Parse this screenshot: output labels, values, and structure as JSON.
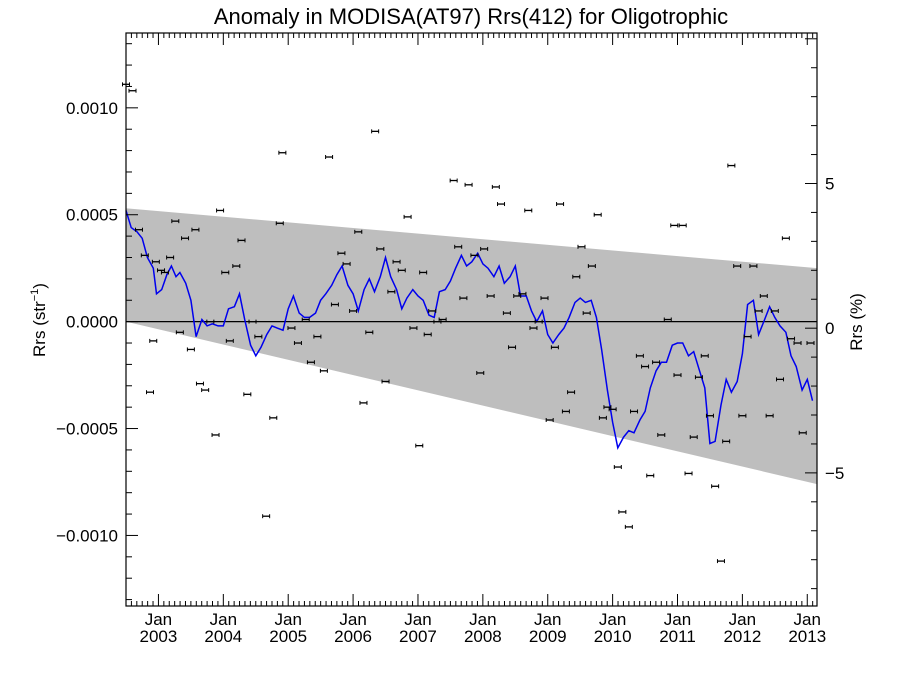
{
  "chart_data": {
    "type": "scatter",
    "title": "Anomaly in MODISA(AT97) Rrs(412) for Oligotrophic",
    "ylabel_left": "Rrs (str",
    "ylabel_left_exp": "−1",
    "ylabel_left_close": ")",
    "ylabel_right": "Rrs (%)",
    "xlim": [
      2002.5,
      2013.15
    ],
    "ylim_left": [
      -0.00133,
      0.00135
    ],
    "ylim_right": [
      -9.6,
      10.2
    ],
    "x_ticks": [
      {
        "x": 2003.0,
        "line1": "Jan",
        "line2": "2003"
      },
      {
        "x": 2004.0,
        "line1": "Jan",
        "line2": "2004"
      },
      {
        "x": 2005.0,
        "line1": "Jan",
        "line2": "2005"
      },
      {
        "x": 2006.0,
        "line1": "Jan",
        "line2": "2006"
      },
      {
        "x": 2007.0,
        "line1": "Jan",
        "line2": "2007"
      },
      {
        "x": 2008.0,
        "line1": "Jan",
        "line2": "2008"
      },
      {
        "x": 2009.0,
        "line1": "Jan",
        "line2": "2009"
      },
      {
        "x": 2010.0,
        "line1": "Jan",
        "line2": "2010"
      },
      {
        "x": 2011.0,
        "line1": "Jan",
        "line2": "2011"
      },
      {
        "x": 2012.0,
        "line1": "Jan",
        "line2": "2012"
      },
      {
        "x": 2013.0,
        "line1": "Jan",
        "line2": "2013"
      }
    ],
    "y_ticks_left": [
      {
        "value": 0.001,
        "label": "0.0010"
      },
      {
        "value": 0.0005,
        "label": "0.0005"
      },
      {
        "value": 0.0,
        "label": "0.0000"
      },
      {
        "value": -0.0005,
        "label": "−0.0005"
      },
      {
        "value": -0.001,
        "label": "−0.0010"
      }
    ],
    "y_ticks_right": [
      {
        "value": 5,
        "label": "5"
      },
      {
        "value": 0,
        "label": "0"
      },
      {
        "value": -5,
        "label": "−5"
      }
    ],
    "band": {
      "x": [
        2002.5,
        2013.15
      ],
      "upper": [
        0.00053,
        0.00025
      ],
      "lower": [
        0.0,
        -0.00076
      ]
    },
    "zero_line": 0.0,
    "series": [
      {
        "name": "monthly anomaly",
        "style": "points-with-errorbars",
        "color": "#000000",
        "points": [
          [
            2002.5,
            0.00111
          ],
          [
            2002.6,
            0.00108
          ],
          [
            2002.7,
            0.00043
          ],
          [
            2002.79,
            0.00031
          ],
          [
            2002.87,
            -0.00033
          ],
          [
            2002.92,
            -9e-05
          ],
          [
            2002.96,
            0.00028
          ],
          [
            2003.04,
            0.00024
          ],
          [
            2003.1,
            0.00023
          ],
          [
            2003.18,
            0.0003
          ],
          [
            2003.26,
            0.00047
          ],
          [
            2003.33,
            -5e-05
          ],
          [
            2003.41,
            0.00039
          ],
          [
            2003.5,
            -0.00013
          ],
          [
            2003.57,
            0.00043
          ],
          [
            2003.64,
            -0.00029
          ],
          [
            2003.72,
            -0.00032
          ],
          [
            2003.8,
            0.0
          ],
          [
            2003.88,
            -0.00053
          ],
          [
            2003.95,
            0.00052
          ],
          [
            2004.03,
            0.00023
          ],
          [
            2004.1,
            -9e-05
          ],
          [
            2004.2,
            0.00026
          ],
          [
            2004.28,
            0.00038
          ],
          [
            2004.37,
            -0.00034
          ],
          [
            2004.45,
            0.0
          ],
          [
            2004.54,
            -7e-05
          ],
          [
            2004.66,
            -0.00091
          ],
          [
            2004.77,
            -0.00045
          ],
          [
            2004.87,
            0.00046
          ],
          [
            2004.91,
            0.00079
          ],
          [
            2005.05,
            -3e-05
          ],
          [
            2005.15,
            -0.0001
          ],
          [
            2005.27,
            1e-05
          ],
          [
            2005.35,
            -0.00019
          ],
          [
            2005.45,
            -7e-05
          ],
          [
            2005.55,
            -0.00023
          ],
          [
            2005.63,
            0.00077
          ],
          [
            2005.72,
            8e-05
          ],
          [
            2005.82,
            0.00032
          ],
          [
            2005.9,
            0.00027
          ],
          [
            2006.0,
            5e-05
          ],
          [
            2006.08,
            0.00042
          ],
          [
            2006.16,
            -0.00038
          ],
          [
            2006.25,
            -5e-05
          ],
          [
            2006.34,
            0.00089
          ],
          [
            2006.42,
            0.00034
          ],
          [
            2006.5,
            -0.00028
          ],
          [
            2006.59,
            0.00014
          ],
          [
            2006.67,
            0.00028
          ],
          [
            2006.75,
            0.00024
          ],
          [
            2006.84,
            0.00049
          ],
          [
            2006.93,
            -3e-05
          ],
          [
            2007.02,
            -0.00058
          ],
          [
            2007.08,
            0.00023
          ],
          [
            2007.15,
            -6e-05
          ],
          [
            2007.22,
            5e-05
          ],
          [
            2007.3,
            0.0
          ],
          [
            2007.38,
            1e-05
          ],
          [
            2007.55,
            0.00066
          ],
          [
            2007.62,
            0.00035
          ],
          [
            2007.7,
            0.00011
          ],
          [
            2007.78,
            0.00064
          ],
          [
            2007.87,
            0.00031
          ],
          [
            2007.96,
            -0.00024
          ],
          [
            2008.02,
            0.00034
          ],
          [
            2008.12,
            0.00012
          ],
          [
            2008.2,
            0.00063
          ],
          [
            2008.28,
            0.00055
          ],
          [
            2008.37,
            4e-05
          ],
          [
            2008.45,
            -0.00012
          ],
          [
            2008.53,
            0.00012
          ],
          [
            2008.61,
            0.00013
          ],
          [
            2008.7,
            0.00052
          ],
          [
            2008.78,
            -3e-05
          ],
          [
            2008.86,
            0.0
          ],
          [
            2008.95,
            0.00011
          ],
          [
            2009.03,
            -0.00046
          ],
          [
            2009.11,
            -0.00012
          ],
          [
            2009.19,
            0.00055
          ],
          [
            2009.28,
            -0.00042
          ],
          [
            2009.36,
            -0.00033
          ],
          [
            2009.44,
            0.00021
          ],
          [
            2009.52,
            0.00035
          ],
          [
            2009.6,
            4e-05
          ],
          [
            2009.68,
            0.00026
          ],
          [
            2009.77,
            0.0005
          ],
          [
            2009.85,
            -0.00045
          ],
          [
            2009.92,
            -0.0004
          ],
          [
            2010.0,
            -0.00041
          ],
          [
            2010.08,
            -0.00068
          ],
          [
            2010.15,
            -0.00089
          ],
          [
            2010.25,
            -0.00096
          ],
          [
            2010.33,
            -0.00042
          ],
          [
            2010.42,
            -0.00016
          ],
          [
            2010.5,
            -0.00021
          ],
          [
            2010.58,
            -0.00072
          ],
          [
            2010.67,
            -0.00019
          ],
          [
            2010.75,
            -0.00053
          ],
          [
            2010.85,
            1e-05
          ],
          [
            2010.95,
            0.00045
          ],
          [
            2011.0,
            -0.00025
          ],
          [
            2011.08,
            0.00045
          ],
          [
            2011.17,
            -0.00071
          ],
          [
            2011.25,
            -0.00054
          ],
          [
            2011.33,
            -0.00026
          ],
          [
            2011.42,
            -0.00016
          ],
          [
            2011.5,
            -0.00044
          ],
          [
            2011.58,
            -0.00077
          ],
          [
            2011.67,
            -0.00112
          ],
          [
            2011.75,
            -0.00056
          ],
          [
            2011.83,
            0.00073
          ],
          [
            2011.92,
            0.00026
          ],
          [
            2012.0,
            -0.00044
          ],
          [
            2012.08,
            -7e-05
          ],
          [
            2012.17,
            0.00026
          ],
          [
            2012.25,
            5e-05
          ],
          [
            2012.33,
            0.00012
          ],
          [
            2012.42,
            -0.00044
          ],
          [
            2012.5,
            5e-05
          ],
          [
            2012.58,
            -0.00027
          ],
          [
            2012.67,
            0.00039
          ],
          [
            2012.75,
            -8e-05
          ],
          [
            2012.85,
            -0.0001
          ],
          [
            2012.93,
            -0.00052
          ],
          [
            2013.05,
            -0.0001
          ]
        ]
      },
      {
        "name": "smoothed anomaly",
        "style": "line",
        "color": "#0000ee",
        "points": [
          [
            2002.5,
            0.00052
          ],
          [
            2002.58,
            0.00044
          ],
          [
            2002.67,
            0.00042
          ],
          [
            2002.75,
            0.00039
          ],
          [
            2002.83,
            0.0003
          ],
          [
            2002.92,
            0.00025
          ],
          [
            2002.97,
            0.00013
          ],
          [
            2003.05,
            0.00015
          ],
          [
            2003.13,
            0.00022
          ],
          [
            2003.2,
            0.00026
          ],
          [
            2003.27,
            0.00021
          ],
          [
            2003.33,
            0.00023
          ],
          [
            2003.42,
            0.00018
          ],
          [
            2003.5,
            0.0001
          ],
          [
            2003.58,
            -7e-05
          ],
          [
            2003.67,
            1e-05
          ],
          [
            2003.75,
            -2e-05
          ],
          [
            2003.83,
            -1e-05
          ],
          [
            2003.92,
            -2e-05
          ],
          [
            2004.0,
            -2e-05
          ],
          [
            2004.08,
            6e-05
          ],
          [
            2004.17,
            7e-05
          ],
          [
            2004.25,
            0.00013
          ],
          [
            2004.33,
            1e-05
          ],
          [
            2004.42,
            -0.00011
          ],
          [
            2004.5,
            -0.00016
          ],
          [
            2004.58,
            -0.00012
          ],
          [
            2004.67,
            -6e-05
          ],
          [
            2004.75,
            -2e-05
          ],
          [
            2004.83,
            -3e-05
          ],
          [
            2004.92,
            -4e-05
          ],
          [
            2005.0,
            6e-05
          ],
          [
            2005.08,
            0.00012
          ],
          [
            2005.17,
            4e-05
          ],
          [
            2005.25,
            2e-05
          ],
          [
            2005.33,
            2e-05
          ],
          [
            2005.42,
            4e-05
          ],
          [
            2005.5,
            0.0001
          ],
          [
            2005.58,
            0.00013
          ],
          [
            2005.67,
            0.00017
          ],
          [
            2005.75,
            0.00022
          ],
          [
            2005.83,
            0.00026
          ],
          [
            2005.92,
            0.00017
          ],
          [
            2006.0,
            0.00013
          ],
          [
            2006.08,
            5e-05
          ],
          [
            2006.17,
            0.00015
          ],
          [
            2006.25,
            0.0002
          ],
          [
            2006.33,
            0.00014
          ],
          [
            2006.42,
            0.00021
          ],
          [
            2006.5,
            0.0003
          ],
          [
            2006.58,
            0.00021
          ],
          [
            2006.67,
            0.00015
          ],
          [
            2006.75,
            6e-05
          ],
          [
            2006.83,
            0.00011
          ],
          [
            2006.92,
            0.00015
          ],
          [
            2007.0,
            0.00012
          ],
          [
            2007.08,
            0.0001
          ],
          [
            2007.17,
            3e-05
          ],
          [
            2007.25,
            2e-05
          ],
          [
            2007.33,
            0.00014
          ],
          [
            2007.42,
            0.00015
          ],
          [
            2007.5,
            0.00019
          ],
          [
            2007.58,
            0.00025
          ],
          [
            2007.67,
            0.00031
          ],
          [
            2007.75,
            0.00026
          ],
          [
            2007.83,
            0.00028
          ],
          [
            2007.92,
            0.00032
          ],
          [
            2008.0,
            0.00027
          ],
          [
            2008.08,
            0.00025
          ],
          [
            2008.17,
            0.00021
          ],
          [
            2008.25,
            0.00026
          ],
          [
            2008.33,
            0.00018
          ],
          [
            2008.42,
            0.00021
          ],
          [
            2008.5,
            0.00026
          ],
          [
            2008.58,
            0.00012
          ],
          [
            2008.67,
            0.00012
          ],
          [
            2008.75,
            5e-05
          ],
          [
            2008.83,
            0.0
          ],
          [
            2008.92,
            5e-05
          ],
          [
            2009.0,
            -6e-05
          ],
          [
            2009.08,
            -0.0001
          ],
          [
            2009.17,
            -6e-05
          ],
          [
            2009.25,
            -3e-05
          ],
          [
            2009.33,
            2e-05
          ],
          [
            2009.42,
            9e-05
          ],
          [
            2009.5,
            0.00011
          ],
          [
            2009.58,
            9e-05
          ],
          [
            2009.67,
            0.0001
          ],
          [
            2009.75,
            2e-05
          ],
          [
            2009.83,
            -0.00013
          ],
          [
            2009.92,
            -0.00032
          ],
          [
            2010.0,
            -0.00047
          ],
          [
            2010.08,
            -0.00059
          ],
          [
            2010.17,
            -0.00054
          ],
          [
            2010.25,
            -0.00051
          ],
          [
            2010.33,
            -0.00052
          ],
          [
            2010.42,
            -0.00046
          ],
          [
            2010.5,
            -0.00042
          ],
          [
            2010.58,
            -0.00031
          ],
          [
            2010.67,
            -0.00023
          ],
          [
            2010.75,
            -0.00019
          ],
          [
            2010.83,
            -0.00019
          ],
          [
            2010.92,
            -0.00011
          ],
          [
            2011.0,
            -0.0001
          ],
          [
            2011.08,
            -0.0001
          ],
          [
            2011.17,
            -0.00016
          ],
          [
            2011.25,
            -0.00014
          ],
          [
            2011.33,
            -0.00022
          ],
          [
            2011.42,
            -0.00031
          ],
          [
            2011.5,
            -0.00057
          ],
          [
            2011.58,
            -0.00056
          ],
          [
            2011.67,
            -0.00039
          ],
          [
            2011.75,
            -0.00027
          ],
          [
            2011.83,
            -0.00033
          ],
          [
            2011.92,
            -0.00028
          ],
          [
            2012.0,
            -0.00015
          ],
          [
            2012.08,
            8e-05
          ],
          [
            2012.17,
            0.0001
          ],
          [
            2012.25,
            -6e-05
          ],
          [
            2012.33,
            0.0
          ],
          [
            2012.42,
            7e-05
          ],
          [
            2012.5,
            2e-05
          ],
          [
            2012.58,
            -2e-05
          ],
          [
            2012.67,
            -5e-05
          ],
          [
            2012.75,
            -0.00016
          ],
          [
            2012.83,
            -0.00021
          ],
          [
            2012.92,
            -0.00032
          ],
          [
            2013.0,
            -0.00027
          ],
          [
            2013.08,
            -0.00037
          ]
        ]
      }
    ]
  }
}
